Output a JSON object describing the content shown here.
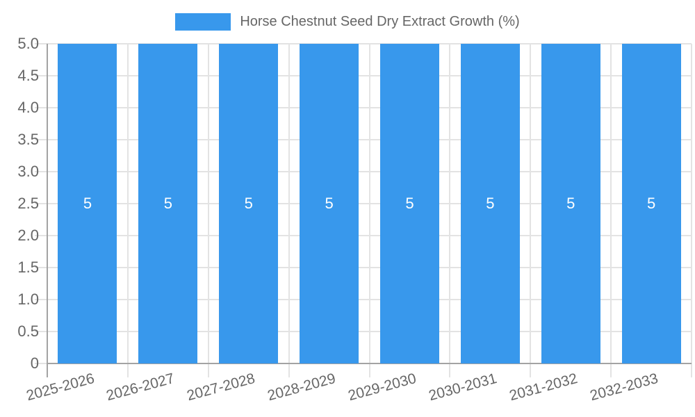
{
  "chart_data": {
    "type": "bar",
    "title": "Horse Chestnut Seed Dry Extract Growth (%)",
    "categories": [
      "2025-2026",
      "2026-2027",
      "2027-2028",
      "2028-2029",
      "2029-2030",
      "2030-2031",
      "2031-2032",
      "2032-2033"
    ],
    "series": [
      {
        "name": "Horse Chestnut Seed Dry Extract Growth (%)",
        "values": [
          5,
          5,
          5,
          5,
          5,
          5,
          5,
          5
        ]
      }
    ],
    "bar_labels": [
      "5",
      "5",
      "5",
      "5",
      "5",
      "5",
      "5",
      "5"
    ],
    "xlabel": "",
    "ylabel": "",
    "ylim": [
      0,
      5
    ],
    "ytick_step": 0.5,
    "ytick_labels": [
      "0",
      "0.5",
      "1.0",
      "1.5",
      "2.0",
      "2.5",
      "3.0",
      "3.5",
      "4.0",
      "4.5",
      "5.0"
    ],
    "xtick_rotation_deg": -15,
    "grid": true,
    "legend_position": "top"
  },
  "legend": {
    "label": "Horse Chestnut Seed Dry Extract Growth (%)"
  },
  "colors": {
    "bar": "#3898EC",
    "text": "#666666",
    "grid": "#E3E3E3",
    "axis": "#A3A3A3",
    "value_label": "#FFFFFF",
    "background": "#FFFFFF"
  }
}
